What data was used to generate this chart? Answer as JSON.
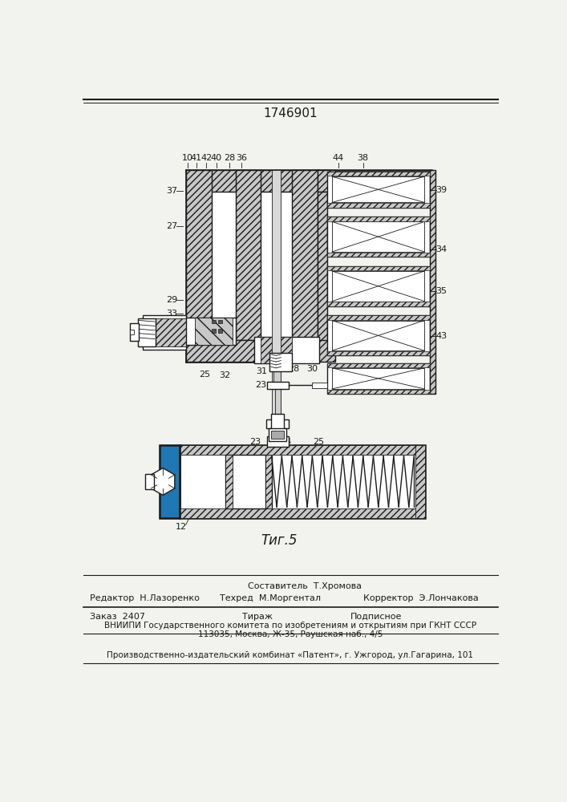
{
  "patent_number": "1746901",
  "bg_color": "#f2f2ee",
  "line_color": "#1a1a1a",
  "footer": {
    "col2_line1": "Составитель  Т.Хромова",
    "col1_line2": "Редактор  Н.Лазоренко",
    "col2_line2": "Техред  М.Моргентал",
    "col3_line2": "Корректор  Э.Лончакова",
    "order_label": "Заказ  2407",
    "tirazh_label": "Тираж",
    "podpisnoe_label": "Подписное",
    "vniip_line1": "ВНИИПИ Государственного комитета по изобретениям и открытиям при ГКНТ СССР",
    "vniip_line2": "113035, Москва, Ж-35, Раушская наб., 4/5",
    "patent_line": "Производственно-издательский комбинат «Патент», г. Ужгород, ул.Гагарина, 101"
  }
}
